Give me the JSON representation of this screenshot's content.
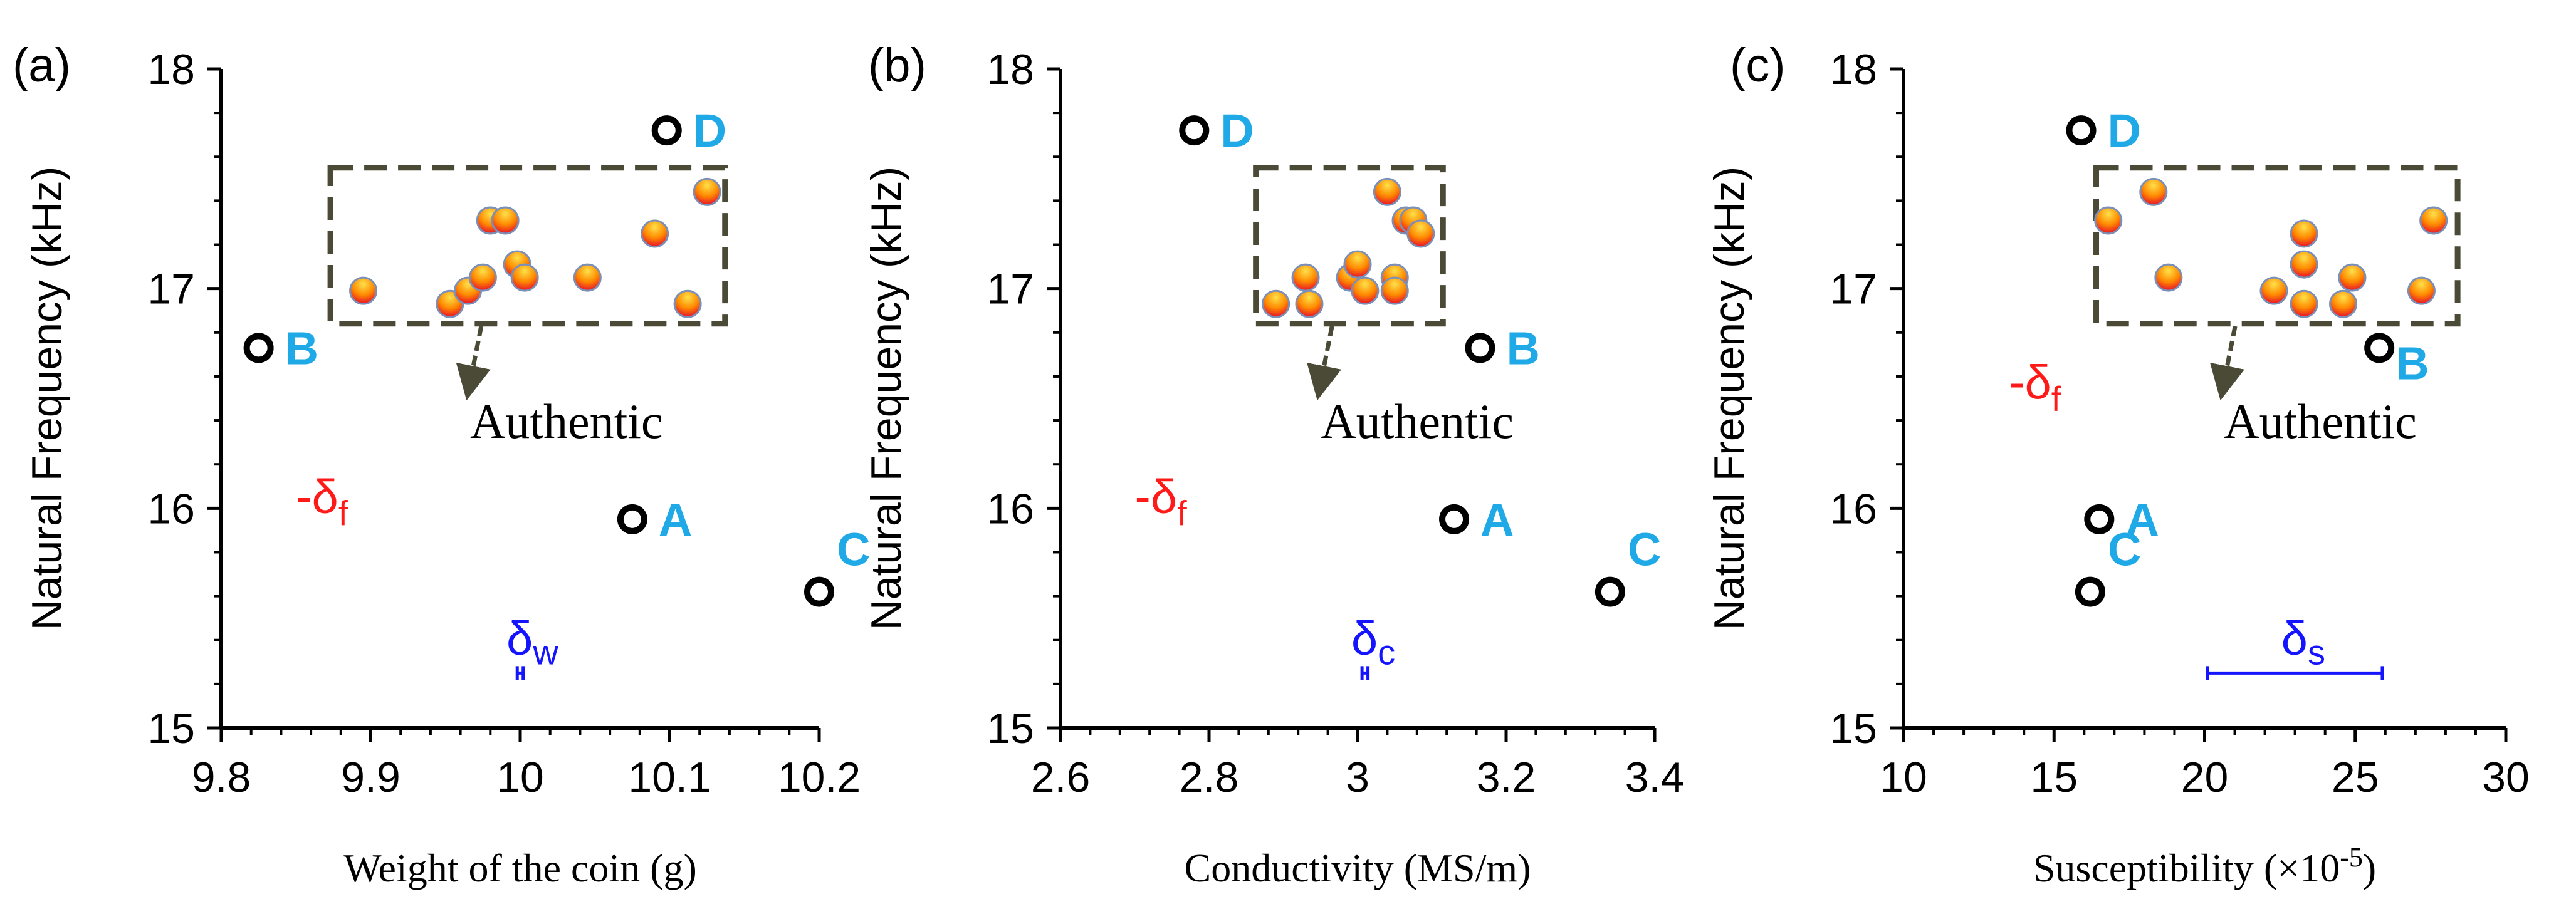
{
  "chart_data": [
    {
      "type": "scatter",
      "panel_label": "(a)",
      "xlabel": "Weight of the coin (g)",
      "ylabel": "Natural Frequency  (kHz)",
      "xlim": [
        9.8,
        10.2
      ],
      "ylim": [
        15,
        18
      ],
      "x_ticks": [
        9.8,
        9.9,
        10,
        10.1,
        10.2
      ],
      "x_tick_labels": [
        "9.8",
        "9.9",
        "10",
        "10.1",
        "10.2"
      ],
      "y_ticks": [
        15,
        16,
        17,
        18
      ],
      "y_tick_labels": [
        "15",
        "16",
        "17",
        "18"
      ],
      "authentic": {
        "label": "Authentic",
        "points": [
          [
            9.895,
            16.99
          ],
          [
            9.953,
            16.93
          ],
          [
            9.965,
            16.99
          ],
          [
            9.975,
            17.05
          ],
          [
            9.98,
            17.31
          ],
          [
            9.99,
            17.31
          ],
          [
            9.998,
            17.11
          ],
          [
            10.003,
            17.05
          ],
          [
            10.045,
            17.05
          ],
          [
            10.09,
            17.25
          ],
          [
            10.112,
            16.93
          ],
          [
            10.125,
            17.44
          ]
        ],
        "box": {
          "x": [
            9.873,
            10.137
          ],
          "y": [
            16.84,
            17.55
          ]
        }
      },
      "counterfeits": [
        {
          "label": "A",
          "x": 10.075,
          "y": 15.95
        },
        {
          "label": "B",
          "x": 9.825,
          "y": 16.73
        },
        {
          "label": "C",
          "x": 10.2,
          "y": 15.62
        },
        {
          "label": "D",
          "x": 10.098,
          "y": 17.72
        }
      ],
      "delta_f": {
        "label": "-δ",
        "subscript": "f",
        "x": 9.85,
        "y": 15.98
      },
      "delta_x": {
        "label": "δ",
        "subscript": "w",
        "x_center": 10.0,
        "half_width": 0.002,
        "y": 15.25
      }
    },
    {
      "type": "scatter",
      "panel_label": "(b)",
      "xlabel": "Conductivity (MS/m)",
      "ylabel": "Natural Frequency  (kHz)",
      "xlim": [
        2.6,
        3.4
      ],
      "ylim": [
        15,
        18
      ],
      "x_ticks": [
        2.6,
        2.8,
        3,
        3.2,
        3.4
      ],
      "x_tick_labels": [
        "2.6",
        "2.8",
        "3",
        "3.2",
        "3.4"
      ],
      "y_ticks": [
        15,
        16,
        17,
        18
      ],
      "y_tick_labels": [
        "15",
        "16",
        "17",
        "18"
      ],
      "authentic": {
        "label": "Authentic",
        "points": [
          [
            2.89,
            16.93
          ],
          [
            2.935,
            16.93
          ],
          [
            2.93,
            17.05
          ],
          [
            2.99,
            17.05
          ],
          [
            3.0,
            17.11
          ],
          [
            3.01,
            16.99
          ],
          [
            3.04,
            17.44
          ],
          [
            3.05,
            17.05
          ],
          [
            3.05,
            16.99
          ],
          [
            3.065,
            17.31
          ],
          [
            3.075,
            17.31
          ],
          [
            3.085,
            17.25
          ]
        ],
        "box": {
          "x": [
            2.863,
            3.115
          ],
          "y": [
            16.84,
            17.55
          ]
        }
      },
      "counterfeits": [
        {
          "label": "A",
          "x": 3.13,
          "y": 15.95
        },
        {
          "label": "B",
          "x": 3.165,
          "y": 16.73
        },
        {
          "label": "C",
          "x": 3.34,
          "y": 15.62
        },
        {
          "label": "D",
          "x": 2.78,
          "y": 17.72
        }
      ],
      "delta_f": {
        "label": "-δ",
        "subscript": "f",
        "x": 2.7,
        "y": 15.98
      },
      "delta_x": {
        "label": "δ",
        "subscript": "c",
        "x_center": 3.01,
        "half_width": 0.004,
        "y": 15.25
      }
    },
    {
      "type": "scatter",
      "panel_label": "(c)",
      "xlabel": "Susceptibility (×10",
      "xlabel_superscript": "-5",
      "xlabel_suffix": ")",
      "ylabel": "Natural Frequency  (kHz)",
      "xlim": [
        10,
        30
      ],
      "ylim": [
        15,
        18
      ],
      "x_ticks": [
        10,
        15,
        20,
        25,
        30
      ],
      "x_tick_labels": [
        "10",
        "15",
        "20",
        "25",
        "30"
      ],
      "y_ticks": [
        15,
        16,
        17,
        18
      ],
      "y_tick_labels": [
        "15",
        "16",
        "17",
        "18"
      ],
      "authentic": {
        "label": "Authentic",
        "points": [
          [
            16.8,
            17.31
          ],
          [
            18.3,
            17.44
          ],
          [
            18.8,
            17.05
          ],
          [
            22.3,
            16.99
          ],
          [
            23.3,
            17.25
          ],
          [
            23.3,
            17.11
          ],
          [
            23.3,
            16.93
          ],
          [
            24.6,
            16.93
          ],
          [
            24.9,
            17.05
          ],
          [
            27.2,
            16.99
          ],
          [
            27.6,
            17.31
          ]
        ],
        "box": {
          "x": [
            16.4,
            28.4
          ],
          "y": [
            16.84,
            17.55
          ]
        }
      },
      "counterfeits": [
        {
          "label": "A",
          "x": 16.5,
          "y": 15.95
        },
        {
          "label": "B",
          "x": 25.8,
          "y": 16.73
        },
        {
          "label": "C",
          "x": 16.2,
          "y": 15.62
        },
        {
          "label": "D",
          "x": 15.9,
          "y": 17.72
        }
      ],
      "delta_f": {
        "label": "-δ",
        "subscript": "f",
        "x": 13.5,
        "y": 16.5
      },
      "delta_x": {
        "label": "δ",
        "subscript": "s",
        "x_center": 23.0,
        "half_width": 2.9,
        "y": 15.25
      }
    }
  ]
}
